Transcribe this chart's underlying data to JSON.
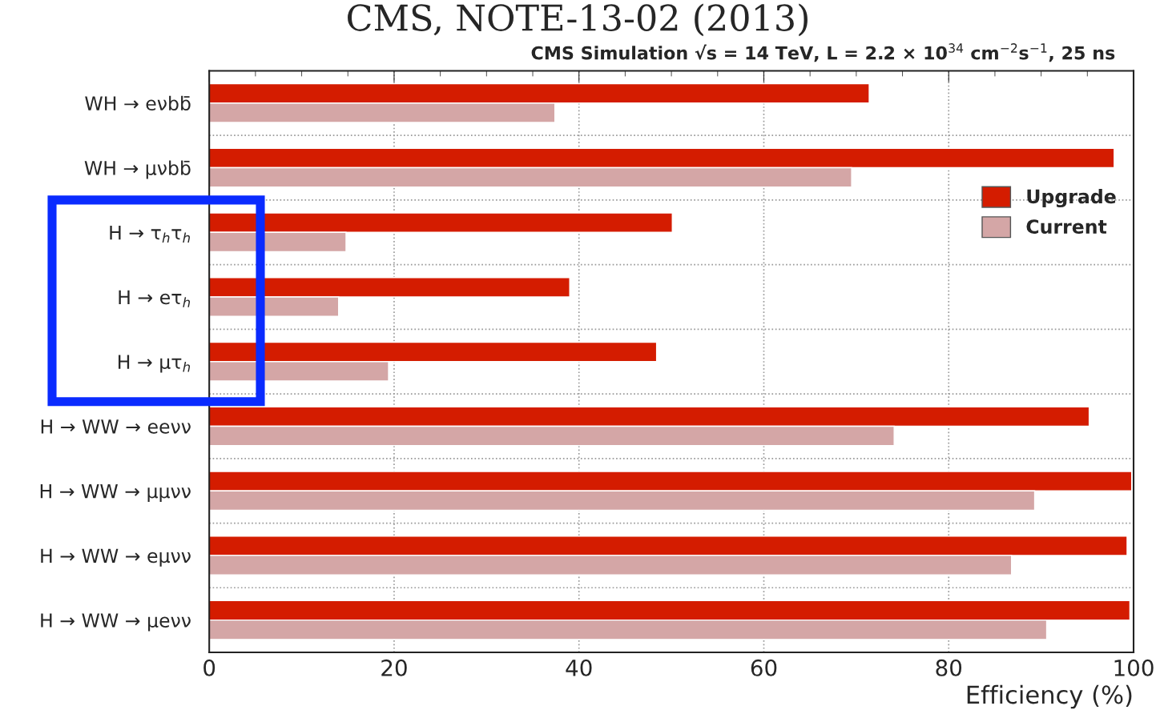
{
  "chart_data": {
    "type": "bar",
    "orientation": "horizontal",
    "title": "CMS, NOTE-13-02 (2013)",
    "subtitle": "CMS Simulation √s = 14 TeV, L = 2.2 × 10$^{34}$ cm$^{−2}$s$^{−1}$, 25 ns",
    "xlabel": "Efficiency (%)",
    "categories": [
      "WH → eνbb̄",
      "WH → μνbb̄",
      "H → τ$_{h}$τ$_{h}$",
      "H → eτ$_{h}$",
      "H → μτ$_{h}$",
      "H → WW → eeνν",
      "H → WW → μμνν",
      "H → WW → eμνν",
      "H → WW → μeνν"
    ],
    "series": [
      {
        "name": "Upgrade",
        "color": "#d41c00",
        "values": [
          71.4,
          97.9,
          50.1,
          39.0,
          48.4,
          95.2,
          99.8,
          99.3,
          99.6
        ]
      },
      {
        "name": "Current",
        "color": "#d4a6a6",
        "values": [
          37.4,
          69.5,
          14.8,
          14.0,
          19.4,
          74.1,
          89.3,
          86.8,
          90.6
        ]
      }
    ],
    "xlim": [
      0,
      100
    ],
    "xticks": [
      0,
      20,
      40,
      60,
      80,
      100
    ],
    "grid": true,
    "legend": "top right"
  }
}
